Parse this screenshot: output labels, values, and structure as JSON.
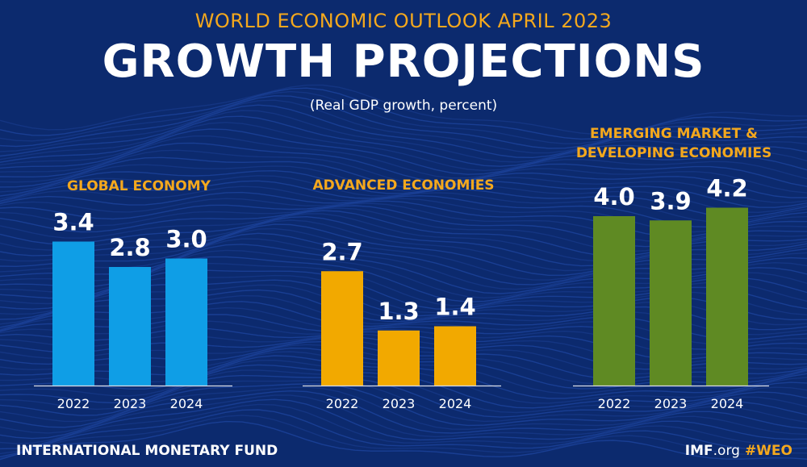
{
  "header": {
    "eyebrow": "WORLD ECONOMIC OUTLOOK APRIL 2023",
    "title": "GROWTH PROJECTIONS",
    "subtitle": "(Real GDP growth, percent)"
  },
  "footer": {
    "org": "INTERNATIONAL MONETARY FUND",
    "site_bold": "IMF",
    "site_rest": ".org",
    "hashtag": "#WEO"
  },
  "colors": {
    "background": "#0c2a6e",
    "title_accent": "#f4a81d",
    "global": "#0f9ee6",
    "advanced": "#f2a900",
    "emerging": "#5f8a23"
  },
  "chart_data": [
    {
      "type": "bar",
      "title": "GLOBAL ECONOMY",
      "categories": [
        "2022",
        "2023",
        "2024"
      ],
      "values": [
        3.4,
        2.8,
        3.0
      ],
      "value_labels": [
        "3.4",
        "2.8",
        "3.0"
      ],
      "color": "#0f9ee6",
      "ylim": [
        0,
        4.5
      ]
    },
    {
      "type": "bar",
      "title": "ADVANCED ECONOMIES",
      "categories": [
        "2022",
        "2023",
        "2024"
      ],
      "values": [
        2.7,
        1.3,
        1.4
      ],
      "value_labels": [
        "2.7",
        "1.3",
        "1.4"
      ],
      "color": "#f2a900",
      "ylim": [
        0,
        4.5
      ]
    },
    {
      "type": "bar",
      "title": "EMERGING MARKET & DEVELOPING ECONOMIES",
      "title_lines": [
        "EMERGING MARKET &",
        "DEVELOPING ECONOMIES"
      ],
      "categories": [
        "2022",
        "2023",
        "2024"
      ],
      "values": [
        4.0,
        3.9,
        4.2
      ],
      "value_labels": [
        "4.0",
        "3.9",
        "4.2"
      ],
      "color": "#5f8a23",
      "ylim": [
        0,
        4.5
      ]
    }
  ]
}
